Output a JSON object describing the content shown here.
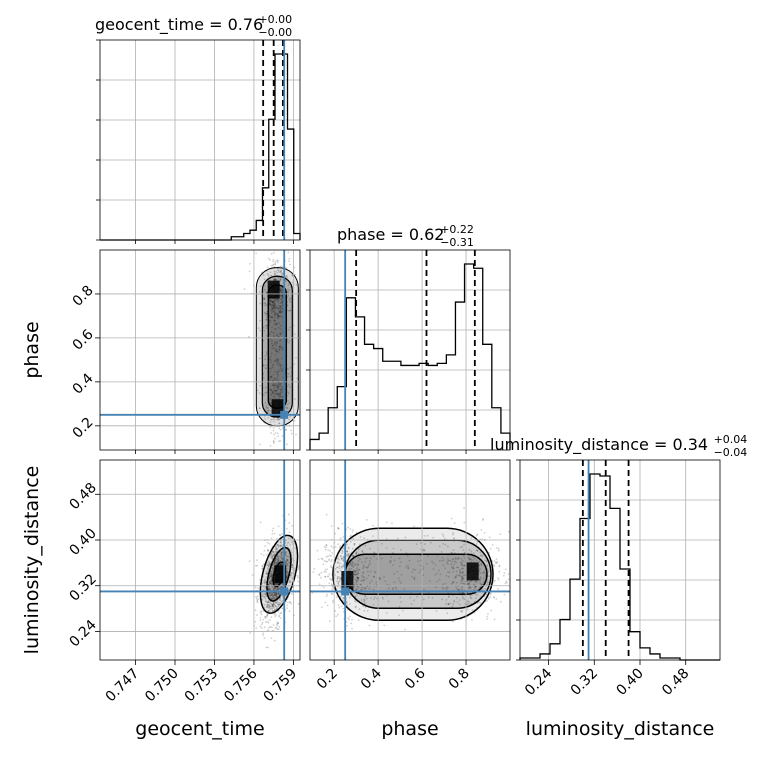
{
  "chart_data": {
    "type": "corner",
    "parameters": [
      "geocent_time",
      "phase",
      "luminosity_distance"
    ],
    "truths": {
      "geocent_time": 0.7583,
      "phase": 0.25,
      "luminosity_distance": 0.31
    },
    "titles": [
      {
        "param": "geocent_time",
        "text": "geocent_time = 0.76",
        "median": 0.76,
        "plus": "+0.00",
        "minus": "−0.00"
      },
      {
        "param": "phase",
        "text": "phase = 0.62",
        "median": 0.62,
        "plus": "+0.22",
        "minus": "−0.31"
      },
      {
        "param": "luminosity_distance",
        "text": "luminosity_distance = 0.34",
        "median": 0.34,
        "plus": "+0.04",
        "minus": "−0.04"
      }
    ],
    "axis_labels": {
      "x": [
        "geocent_time",
        "phase",
        "luminosity_distance"
      ],
      "y": [
        "phase",
        "luminosity_distance"
      ]
    },
    "ranges": {
      "geocent_time": [
        0.7443,
        0.7595
      ],
      "phase": [
        0.09,
        1.0
      ],
      "luminosity_distance": [
        0.19,
        0.54
      ]
    },
    "ticks": {
      "geocent_time": [
        "0.747",
        "0.750",
        "0.753",
        "0.756",
        "0.759"
      ],
      "phase": [
        "0.2",
        "0.4",
        "0.6",
        "0.8"
      ],
      "luminosity_distance": [
        "0.24",
        "0.32",
        "0.40",
        "0.48"
      ]
    },
    "quantiles": {
      "geocent_time": [
        0.7567,
        0.7575,
        0.7582
      ],
      "phase": [
        0.3,
        0.62,
        0.84
      ],
      "luminosity_distance": [
        0.3,
        0.34,
        0.38
      ]
    },
    "histograms": {
      "geocent_time": {
        "edges_range": [
          0.7443,
          0.7595
        ],
        "counts": [
          0,
          0,
          0,
          0,
          0,
          0,
          0,
          0,
          0,
          0,
          0,
          0,
          0,
          0,
          0,
          0,
          0,
          0,
          0,
          0,
          0,
          1,
          1,
          2,
          3,
          6,
          16,
          37,
          57,
          57,
          34,
          2
        ]
      },
      "phase": {
        "edges_range": [
          0.09,
          1.0
        ],
        "counts": [
          5,
          8,
          20,
          30,
          72,
          63,
          50,
          48,
          42,
          42,
          40,
          40,
          41,
          40,
          41,
          45,
          70,
          88,
          86,
          50,
          20,
          8
        ]
      },
      "luminosity_distance": {
        "edges_range": [
          0.19,
          0.54
        ],
        "counts": [
          1,
          1,
          3,
          8,
          20,
          40,
          70,
          92,
          91,
          75,
          45,
          14,
          6,
          3,
          1,
          1,
          0,
          0,
          0,
          0
        ]
      }
    },
    "density_peaks": [
      {
        "panel": "phase_vs_geocent_time",
        "x": 0.7575,
        "y": 0.82
      },
      {
        "panel": "phase_vs_geocent_time",
        "x": 0.7578,
        "y": 0.28
      },
      {
        "panel": "luminosity_distance_vs_geocent_time",
        "x": 0.758,
        "y": 0.34
      },
      {
        "panel": "luminosity_distance_vs_phase",
        "x": 0.26,
        "y": 0.33
      },
      {
        "panel": "luminosity_distance_vs_phase",
        "x": 0.83,
        "y": 0.345
      }
    ],
    "grid": true,
    "colors": {
      "truth": "#4682b4",
      "hist": "#000000",
      "grid": "#b0b0b0",
      "density": "#000000"
    }
  }
}
